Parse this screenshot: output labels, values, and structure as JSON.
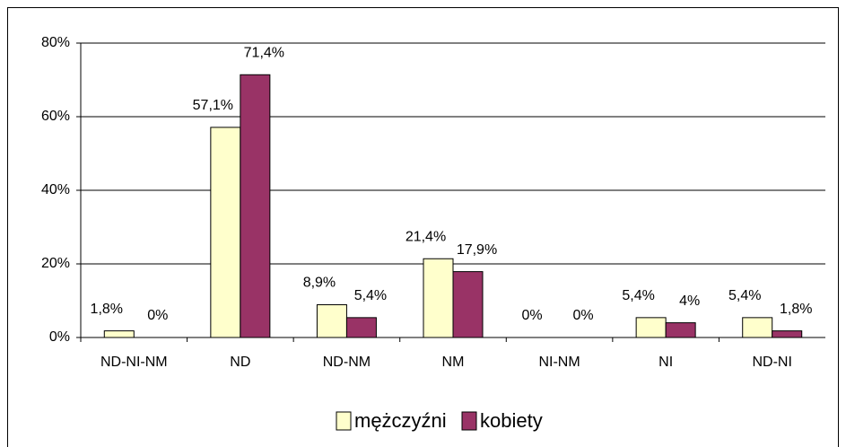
{
  "chart_data": {
    "type": "bar",
    "categories": [
      "ND-NI-NM",
      "ND",
      "ND-NM",
      "NM",
      "NI-NM",
      "NI",
      "ND-NI"
    ],
    "series": [
      {
        "name": "mężczyźni",
        "color": "#ffffcc",
        "values": [
          1.8,
          57.1,
          8.9,
          21.4,
          0,
          5.4,
          5.4
        ],
        "value_labels": [
          "1,8%",
          "57,1%",
          "8,9%",
          "21,4%",
          "0%",
          "5,4%",
          "5,4%"
        ]
      },
      {
        "name": "kobiety",
        "color": "#993366",
        "values": [
          0,
          71.4,
          5.4,
          17.9,
          0,
          4,
          1.8
        ],
        "value_labels": [
          "0%",
          "71,4%",
          "5,4%",
          "17,9%",
          "0%",
          "4%",
          "1,8%"
        ]
      }
    ],
    "ylim": [
      0,
      80
    ],
    "yticks": [
      {
        "value": 0,
        "label": "0%"
      },
      {
        "value": 20,
        "label": "20%"
      },
      {
        "value": 40,
        "label": "40%"
      },
      {
        "value": 60,
        "label": "60%"
      },
      {
        "value": 80,
        "label": "80%"
      }
    ],
    "grid": true,
    "legend": "bottom"
  }
}
